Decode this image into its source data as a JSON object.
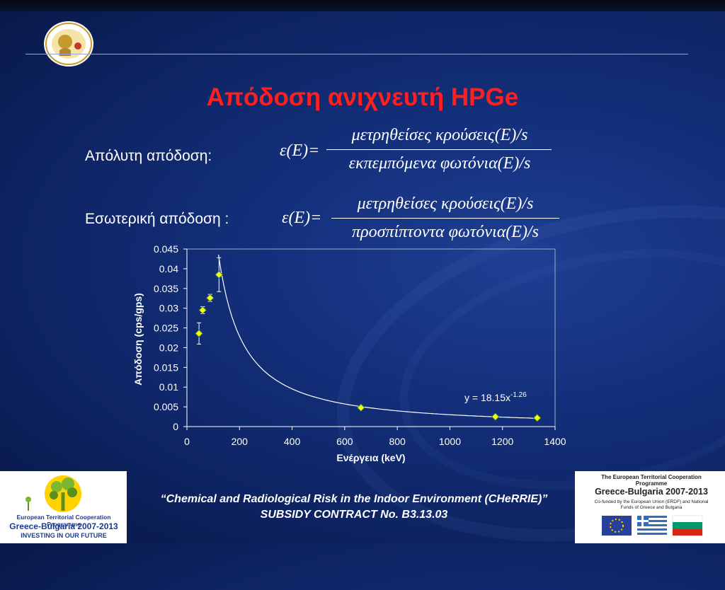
{
  "slide": {
    "title": "Απόδοση ανιχνευτή HPGe",
    "absolute_label": "Απόλυτη απόδοση:",
    "intrinsic_label": "Εσωτερική απόδοση :"
  },
  "formulas": {
    "absolute": {
      "lhs": "ε(E)=",
      "numerator": "μετρηθείσες κρούσεις(E)/s",
      "denominator": "εκπεμπόμενα φωτόνια(E)/s"
    },
    "intrinsic": {
      "lhs": "ε(E)=",
      "numerator": "μετρηθείσες κρούσεις(E)/s",
      "denominator": "προσπίπτοντα φωτόνια(E)/s"
    }
  },
  "footer": {
    "line1": "“Chemical and Radiological Risk in the Indoor Environment (CHeRRIE)”",
    "line2": "SUBSIDY CONTRACT No. B3.13.03"
  },
  "logo_left": {
    "programme": "European Territorial Cooperation Programme",
    "greece_bulgaria": "Greece-Bulgaria 2007-2013",
    "tagline": "INVESTING IN OUR FUTURE"
  },
  "logo_right": {
    "programme": "The European Territorial Cooperation Programme",
    "greece_bulgaria": "Greece-Bulgaria 2007-2013",
    "cofunded": "Co-funded by the European Union (ERDF) and National Funds of Greece and Bulgaria"
  },
  "colors": {
    "title": "#ff1f1f",
    "marker": "#ffff00",
    "marker_edge": "#2e8b57",
    "axis_text": "#ffffff"
  },
  "chart_data": {
    "type": "scatter",
    "title": "",
    "xlabel": "Ενέργεια (keV)",
    "ylabel": "Απόδοση (cps/gps)",
    "xlim": [
      0,
      1400
    ],
    "ylim": [
      0,
      0.045
    ],
    "xticks": [
      "0",
      "200",
      "400",
      "600",
      "800",
      "1000",
      "1200",
      "1400"
    ],
    "yticks": [
      "0",
      "0.005",
      "0.01",
      "0.015",
      "0.02",
      "0.025",
      "0.03",
      "0.035",
      "0.04",
      "0.045"
    ],
    "grid": false,
    "series": [
      {
        "points": [
          {
            "x": 46,
            "y": 0.0236,
            "err": 0.0027
          },
          {
            "x": 60,
            "y": 0.0295,
            "err": 0.0009
          },
          {
            "x": 88,
            "y": 0.0326,
            "err": 0.0009
          },
          {
            "x": 122,
            "y": 0.0385,
            "err": 0.0043
          },
          {
            "x": 662,
            "y": 0.0048,
            "err": 0
          },
          {
            "x": 1173,
            "y": 0.0025,
            "err": 0
          },
          {
            "x": 1332,
            "y": 0.0022,
            "err": 0
          }
        ]
      }
    ],
    "trendline": {
      "equation": "y = 18.15x",
      "exponent_label": "-1.26",
      "a": 18.15,
      "b": -1.26,
      "x_range": [
        120,
        1332
      ]
    }
  }
}
